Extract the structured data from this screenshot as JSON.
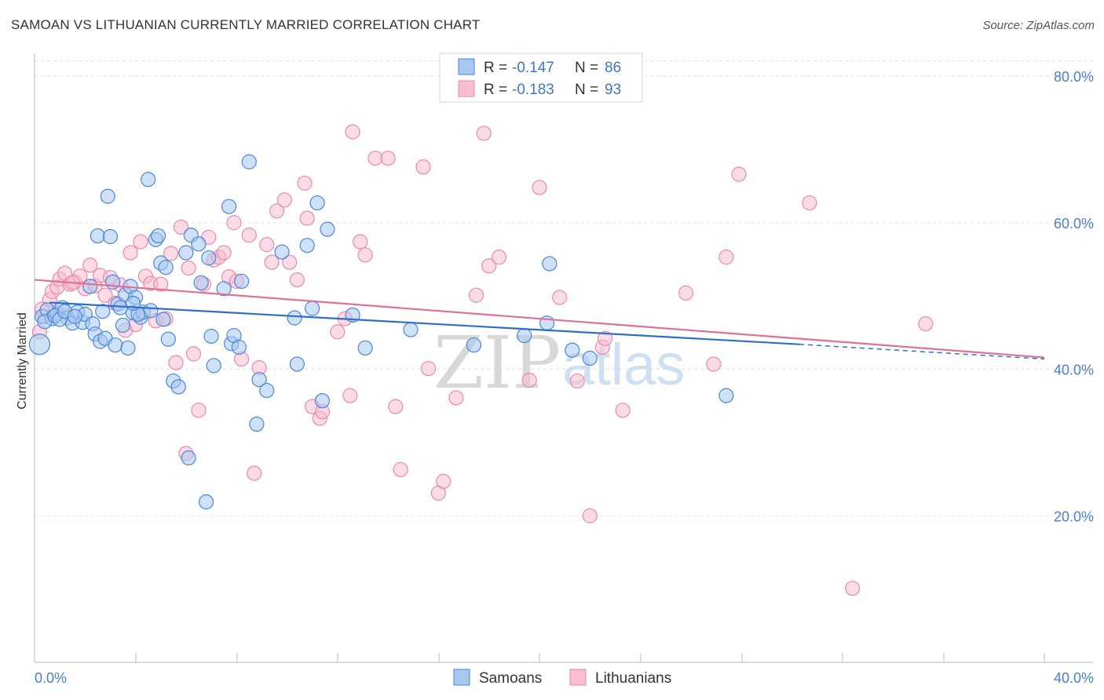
{
  "title": "SAMOAN VS LITHUANIAN CURRENTLY MARRIED CORRELATION CHART",
  "source": "Source: ZipAtlas.com",
  "watermark": {
    "zip": "ZIP",
    "atlas": "atlas"
  },
  "colors": {
    "samoans_fill": "#a8c8f0",
    "samoans_stroke": "#4a86d8",
    "samoans_line": "#2f6fcc",
    "lithuanians_fill": "#f7bdd0",
    "lithuanians_stroke": "#e98aab",
    "lithuanians_line": "#e07098",
    "tick_label": "#4a7fc9",
    "grid": "#e2e2e2"
  },
  "legend": {
    "rows": [
      {
        "r_label": "R =",
        "r_value": "-0.147",
        "n_label": "N =",
        "n_value": "86"
      },
      {
        "r_label": "R =",
        "r_value": "-0.183",
        "n_label": "N =",
        "n_value": "93"
      }
    ]
  },
  "chart_data": {
    "type": "scatter",
    "title": "SAMOAN VS LITHUANIAN CURRENTLY MARRIED CORRELATION CHART",
    "xlabel": "",
    "ylabel": "Currently Married",
    "xlim": [
      0,
      40
    ],
    "ylim": [
      0,
      82
    ],
    "x_tick_labels": [
      "0.0%",
      "40.0%"
    ],
    "y_ticks": [
      20,
      40,
      60,
      80
    ],
    "y_tick_labels": [
      "20.0%",
      "40.0%",
      "60.0%",
      "80.0%"
    ],
    "grid": true,
    "legend_position": "bottom",
    "series": [
      {
        "name": "Samoans",
        "r": -0.147,
        "n": 86,
        "trend": {
          "x": [
            0.6,
            30.3
          ],
          "y": [
            49.1,
            43.4
          ],
          "dashed_to": [
            40.0,
            41.4
          ]
        },
        "points": [
          [
            0.3,
            47.2
          ],
          [
            0.5,
            48.1
          ],
          [
            0.7,
            46.9
          ],
          [
            0.9,
            47.6
          ],
          [
            1.1,
            48.4
          ],
          [
            1.3,
            47.0
          ],
          [
            1.5,
            46.3
          ],
          [
            1.7,
            47.8
          ],
          [
            1.9,
            46.4
          ],
          [
            2.0,
            47.5
          ],
          [
            2.2,
            51.3
          ],
          [
            2.3,
            46.2
          ],
          [
            2.4,
            44.8
          ],
          [
            2.5,
            58.2
          ],
          [
            2.6,
            43.8
          ],
          [
            2.7,
            47.9
          ],
          [
            2.8,
            44.2
          ],
          [
            2.9,
            63.6
          ],
          [
            3.0,
            58.1
          ],
          [
            3.1,
            51.9
          ],
          [
            3.2,
            43.3
          ],
          [
            3.3,
            48.9
          ],
          [
            3.4,
            48.4
          ],
          [
            3.5,
            46.0
          ],
          [
            3.6,
            50.2
          ],
          [
            3.7,
            42.9
          ],
          [
            3.8,
            51.3
          ],
          [
            3.9,
            47.7
          ],
          [
            4.0,
            49.8
          ],
          [
            4.2,
            47.1
          ],
          [
            4.3,
            47.8
          ],
          [
            4.5,
            65.9
          ],
          [
            4.6,
            48.0
          ],
          [
            4.8,
            57.7
          ],
          [
            4.9,
            58.2
          ],
          [
            5.0,
            54.5
          ],
          [
            5.2,
            53.9
          ],
          [
            5.3,
            44.1
          ],
          [
            5.5,
            38.4
          ],
          [
            5.7,
            37.6
          ],
          [
            6.0,
            55.9
          ],
          [
            6.1,
            27.9
          ],
          [
            6.2,
            58.3
          ],
          [
            6.5,
            57.1
          ],
          [
            6.6,
            51.8
          ],
          [
            6.8,
            21.9
          ],
          [
            6.9,
            55.2
          ],
          [
            7.0,
            44.5
          ],
          [
            7.1,
            40.5
          ],
          [
            7.5,
            51.0
          ],
          [
            7.7,
            62.2
          ],
          [
            7.8,
            43.5
          ],
          [
            7.9,
            44.6
          ],
          [
            8.1,
            43.0
          ],
          [
            8.2,
            52.0
          ],
          [
            8.5,
            68.3
          ],
          [
            8.8,
            32.5
          ],
          [
            8.9,
            38.6
          ],
          [
            9.2,
            37.1
          ],
          [
            9.8,
            56.0
          ],
          [
            10.3,
            47.0
          ],
          [
            10.4,
            40.7
          ],
          [
            10.8,
            56.9
          ],
          [
            11.0,
            48.3
          ],
          [
            11.2,
            62.7
          ],
          [
            11.4,
            35.7
          ],
          [
            11.6,
            59.1
          ],
          [
            12.6,
            47.4
          ],
          [
            13.1,
            42.9
          ],
          [
            14.9,
            45.4
          ],
          [
            17.4,
            43.3
          ],
          [
            19.4,
            44.6
          ],
          [
            20.3,
            46.3
          ],
          [
            20.4,
            54.4
          ],
          [
            21.3,
            42.6
          ],
          [
            22.0,
            41.5
          ],
          [
            27.4,
            36.4
          ],
          [
            0.2,
            43.4
          ],
          [
            0.4,
            46.5
          ],
          [
            0.8,
            47.3
          ],
          [
            1.0,
            46.8
          ],
          [
            1.2,
            47.9
          ],
          [
            1.6,
            47.2
          ],
          [
            4.1,
            47.5
          ],
          [
            3.9,
            49.0
          ],
          [
            5.1,
            46.8
          ]
        ]
      },
      {
        "name": "Lithuanians",
        "r": -0.183,
        "n": 93,
        "trend": {
          "x": [
            0.0,
            40.0
          ],
          "y": [
            52.2,
            41.6
          ]
        },
        "points": [
          [
            0.2,
            45.1
          ],
          [
            0.4,
            47.2
          ],
          [
            0.6,
            49.5
          ],
          [
            0.7,
            50.6
          ],
          [
            0.9,
            51.2
          ],
          [
            1.0,
            52.3
          ],
          [
            1.2,
            53.1
          ],
          [
            1.4,
            51.6
          ],
          [
            1.6,
            51.9
          ],
          [
            1.8,
            52.7
          ],
          [
            2.0,
            51.0
          ],
          [
            2.2,
            54.2
          ],
          [
            2.4,
            51.4
          ],
          [
            2.6,
            52.8
          ],
          [
            2.8,
            50.1
          ],
          [
            3.0,
            52.5
          ],
          [
            3.2,
            49.0
          ],
          [
            3.4,
            51.5
          ],
          [
            3.6,
            45.3
          ],
          [
            3.8,
            55.9
          ],
          [
            4.0,
            46.1
          ],
          [
            4.2,
            57.4
          ],
          [
            4.4,
            52.7
          ],
          [
            4.6,
            51.7
          ],
          [
            4.8,
            46.6
          ],
          [
            5.0,
            51.6
          ],
          [
            5.2,
            46.9
          ],
          [
            5.4,
            55.8
          ],
          [
            5.6,
            40.9
          ],
          [
            5.8,
            59.4
          ],
          [
            6.0,
            28.5
          ],
          [
            6.1,
            53.8
          ],
          [
            6.3,
            42.1
          ],
          [
            6.5,
            34.4
          ],
          [
            6.7,
            51.6
          ],
          [
            6.9,
            58.0
          ],
          [
            7.1,
            54.9
          ],
          [
            7.3,
            55.3
          ],
          [
            7.5,
            55.9
          ],
          [
            7.7,
            52.6
          ],
          [
            7.9,
            60.0
          ],
          [
            8.0,
            52.0
          ],
          [
            8.2,
            41.4
          ],
          [
            8.5,
            58.3
          ],
          [
            8.7,
            25.8
          ],
          [
            8.9,
            40.2
          ],
          [
            9.2,
            57.0
          ],
          [
            9.4,
            54.6
          ],
          [
            9.6,
            61.6
          ],
          [
            9.9,
            63.1
          ],
          [
            10.1,
            54.6
          ],
          [
            10.4,
            52.2
          ],
          [
            10.7,
            65.4
          ],
          [
            10.8,
            60.6
          ],
          [
            11.0,
            34.9
          ],
          [
            11.3,
            33.3
          ],
          [
            11.4,
            34.2
          ],
          [
            12.0,
            45.1
          ],
          [
            12.3,
            46.9
          ],
          [
            12.5,
            36.4
          ],
          [
            12.6,
            72.4
          ],
          [
            12.9,
            57.4
          ],
          [
            13.1,
            55.6
          ],
          [
            13.5,
            68.8
          ],
          [
            14.0,
            68.8
          ],
          [
            14.3,
            34.9
          ],
          [
            14.5,
            26.3
          ],
          [
            15.4,
            67.6
          ],
          [
            15.6,
            40.1
          ],
          [
            16.0,
            23.1
          ],
          [
            16.2,
            24.7
          ],
          [
            16.7,
            36.1
          ],
          [
            17.5,
            50.1
          ],
          [
            17.8,
            72.2
          ],
          [
            18.0,
            54.1
          ],
          [
            18.4,
            55.3
          ],
          [
            19.6,
            38.5
          ],
          [
            20.0,
            64.8
          ],
          [
            20.8,
            49.8
          ],
          [
            21.5,
            38.4
          ],
          [
            22.0,
            20.0
          ],
          [
            22.5,
            43.0
          ],
          [
            22.6,
            44.2
          ],
          [
            23.3,
            34.4
          ],
          [
            25.8,
            50.4
          ],
          [
            26.9,
            40.7
          ],
          [
            27.4,
            55.3
          ],
          [
            27.9,
            66.6
          ],
          [
            30.7,
            62.7
          ],
          [
            32.4,
            10.1
          ],
          [
            35.3,
            46.2
          ],
          [
            0.3,
            48.2
          ],
          [
            1.5,
            51.8
          ]
        ]
      }
    ]
  },
  "bottom_legend": [
    {
      "label": "Samoans"
    },
    {
      "label": "Lithuanians"
    }
  ]
}
